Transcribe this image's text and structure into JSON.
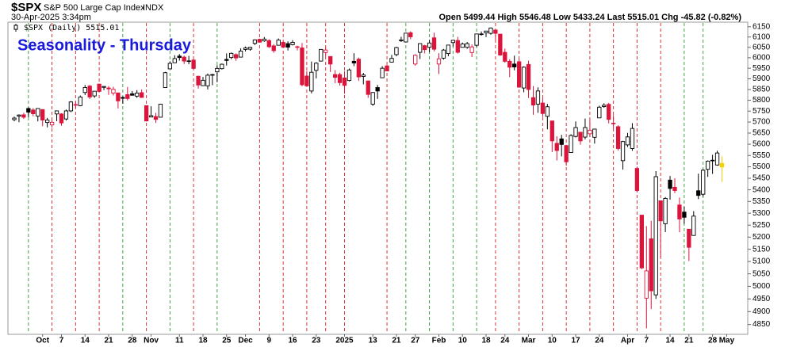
{
  "chart_data": {
    "type": "candlestick",
    "title": "Seasonality - Thursday",
    "header": {
      "symbol": "$SPX",
      "name": "S&P 500 Large Cap Index",
      "exchange": "INDX",
      "timestamp": "30-Apr-2025 3:34pm",
      "quote": "Open 5499.44 High 5546.48 Low 5433.24 Last 5515.01 Chg -45.82 (-0.82%)"
    },
    "legend": "$SPX (Daily) 5515.01",
    "log_scale": true,
    "grid": false,
    "up_color": "#000000",
    "down_color": "#dc143c",
    "last_color": "#f5d000",
    "thursday_up_color": "#2e9a2e",
    "thursday_down_color": "#d81e1e",
    "ylim": [
      4800,
      6200
    ],
    "yticks": [
      4850,
      4900,
      4950,
      5000,
      5050,
      5100,
      5150,
      5200,
      5250,
      5300,
      5350,
      5400,
      5450,
      5500,
      5550,
      5600,
      5650,
      5700,
      5750,
      5800,
      5850,
      5900,
      5950,
      6000,
      6050,
      6100,
      6150
    ],
    "xticks": [
      {
        "value": "2024-10-01",
        "label": "Oct"
      },
      {
        "value": "2024-10-07",
        "label": "7"
      },
      {
        "value": "2024-10-14",
        "label": "14"
      },
      {
        "value": "2024-10-21",
        "label": "21"
      },
      {
        "value": "2024-10-28",
        "label": "28"
      },
      {
        "value": "2024-11-01",
        "label": "Nov"
      },
      {
        "value": "2024-11-11",
        "label": "11"
      },
      {
        "value": "2024-11-18",
        "label": "18"
      },
      {
        "value": "2024-11-25",
        "label": "25"
      },
      {
        "value": "2024-12-02",
        "label": "Dec"
      },
      {
        "value": "2024-12-09",
        "label": "9"
      },
      {
        "value": "2024-12-16",
        "label": "16"
      },
      {
        "value": "2024-12-23",
        "label": "23"
      },
      {
        "value": "2025-01-02",
        "label": "2025"
      },
      {
        "value": "2025-01-13",
        "label": "13"
      },
      {
        "value": "2025-01-21",
        "label": "21"
      },
      {
        "value": "2025-01-27",
        "label": "27"
      },
      {
        "value": "2025-02-03",
        "label": "Feb"
      },
      {
        "value": "2025-02-10",
        "label": "10"
      },
      {
        "value": "2025-02-18",
        "label": "18"
      },
      {
        "value": "2025-02-24",
        "label": "24"
      },
      {
        "value": "2025-03-03",
        "label": "Mar"
      },
      {
        "value": "2025-03-10",
        "label": "10"
      },
      {
        "value": "2025-03-17",
        "label": "17"
      },
      {
        "value": "2025-03-24",
        "label": "24"
      },
      {
        "value": "2025-04-01",
        "label": "Apr"
      },
      {
        "value": "2025-04-07",
        "label": "7"
      },
      {
        "value": "2025-04-14",
        "label": "14"
      },
      {
        "value": "2025-04-21",
        "label": "21"
      },
      {
        "value": "2025-04-28",
        "label": "28"
      },
      {
        "value": "2025-05-01",
        "label": "May"
      }
    ],
    "x": [
      "2024-09-23",
      "2024-09-24",
      "2024-09-25",
      "2024-09-26",
      "2024-09-27",
      "2024-09-30",
      "2024-10-01",
      "2024-10-02",
      "2024-10-03",
      "2024-10-04",
      "2024-10-07",
      "2024-10-08",
      "2024-10-09",
      "2024-10-10",
      "2024-10-11",
      "2024-10-14",
      "2024-10-15",
      "2024-10-16",
      "2024-10-17",
      "2024-10-18",
      "2024-10-21",
      "2024-10-22",
      "2024-10-23",
      "2024-10-24",
      "2024-10-25",
      "2024-10-28",
      "2024-10-29",
      "2024-10-30",
      "2024-10-31",
      "2024-11-01",
      "2024-11-04",
      "2024-11-05",
      "2024-11-06",
      "2024-11-07",
      "2024-11-08",
      "2024-11-11",
      "2024-11-12",
      "2024-11-13",
      "2024-11-14",
      "2024-11-15",
      "2024-11-18",
      "2024-11-19",
      "2024-11-20",
      "2024-11-21",
      "2024-11-22",
      "2024-11-25",
      "2024-11-26",
      "2024-11-27",
      "2024-11-29",
      "2024-12-02",
      "2024-12-03",
      "2024-12-04",
      "2024-12-05",
      "2024-12-06",
      "2024-12-09",
      "2024-12-10",
      "2024-12-11",
      "2024-12-12",
      "2024-12-13",
      "2024-12-16",
      "2024-12-17",
      "2024-12-18",
      "2024-12-19",
      "2024-12-20",
      "2024-12-23",
      "2024-12-24",
      "2024-12-26",
      "2024-12-27",
      "2024-12-30",
      "2024-12-31",
      "2025-01-02",
      "2025-01-03",
      "2025-01-06",
      "2025-01-07",
      "2025-01-08",
      "2025-01-10",
      "2025-01-13",
      "2025-01-14",
      "2025-01-15",
      "2025-01-16",
      "2025-01-17",
      "2025-01-21",
      "2025-01-22",
      "2025-01-23",
      "2025-01-24",
      "2025-01-27",
      "2025-01-28",
      "2025-01-29",
      "2025-01-30",
      "2025-01-31",
      "2025-02-03",
      "2025-02-04",
      "2025-02-05",
      "2025-02-06",
      "2025-02-07",
      "2025-02-10",
      "2025-02-11",
      "2025-02-12",
      "2025-02-13",
      "2025-02-14",
      "2025-02-18",
      "2025-02-19",
      "2025-02-20",
      "2025-02-21",
      "2025-02-24",
      "2025-02-25",
      "2025-02-26",
      "2025-02-27",
      "2025-02-28",
      "2025-03-03",
      "2025-03-04",
      "2025-03-05",
      "2025-03-06",
      "2025-03-07",
      "2025-03-10",
      "2025-03-11",
      "2025-03-12",
      "2025-03-13",
      "2025-03-14",
      "2025-03-17",
      "2025-03-18",
      "2025-03-19",
      "2025-03-20",
      "2025-03-21",
      "2025-03-24",
      "2025-03-25",
      "2025-03-26",
      "2025-03-27",
      "2025-03-28",
      "2025-03-31",
      "2025-04-01",
      "2025-04-02",
      "2025-04-03",
      "2025-04-04",
      "2025-04-07",
      "2025-04-08",
      "2025-04-09",
      "2025-04-10",
      "2025-04-11",
      "2025-04-14",
      "2025-04-15",
      "2025-04-16",
      "2025-04-17",
      "2025-04-21",
      "2025-04-22",
      "2025-04-23",
      "2025-04-24",
      "2025-04-25",
      "2025-04-28",
      "2025-04-29",
      "2025-04-30"
    ],
    "ohlc": [
      [
        5711,
        5725,
        5704,
        5718
      ],
      [
        5727,
        5735,
        5699,
        5732
      ],
      [
        5733,
        5742,
        5714,
        5722
      ],
      [
        5762,
        5767,
        5722,
        5745
      ],
      [
        5755,
        5764,
        5727,
        5738
      ],
      [
        5727,
        5763,
        5703,
        5762
      ],
      [
        5757,
        5757,
        5681,
        5709
      ],
      [
        5698,
        5719,
        5676,
        5709
      ],
      [
        5687,
        5709,
        5675,
        5699
      ],
      [
        5737,
        5753,
        5704,
        5751
      ],
      [
        5737,
        5740,
        5683,
        5696
      ],
      [
        5714,
        5757,
        5707,
        5751
      ],
      [
        5751,
        5796,
        5745,
        5792
      ],
      [
        5778,
        5795,
        5764,
        5780
      ],
      [
        5775,
        5822,
        5772,
        5815
      ],
      [
        5836,
        5871,
        5824,
        5859
      ],
      [
        5866,
        5871,
        5806,
        5815
      ],
      [
        5820,
        5843,
        5811,
        5842
      ],
      [
        5875,
        5878,
        5840,
        5841
      ],
      [
        5860,
        5866,
        5847,
        5864
      ],
      [
        5857,
        5866,
        5825,
        5853
      ],
      [
        5833,
        5863,
        5822,
        5851
      ],
      [
        5834,
        5835,
        5762,
        5797
      ],
      [
        5813,
        5818,
        5784,
        5809
      ],
      [
        5826,
        5862,
        5799,
        5808
      ],
      [
        5830,
        5843,
        5823,
        5823
      ],
      [
        5819,
        5847,
        5811,
        5833
      ],
      [
        5835,
        5850,
        5811,
        5813
      ],
      [
        5775,
        5776,
        5703,
        5705
      ],
      [
        5723,
        5772,
        5723,
        5729
      ],
      [
        5725,
        5742,
        5696,
        5712
      ],
      [
        5722,
        5784,
        5722,
        5782
      ],
      [
        5859,
        5933,
        5859,
        5929
      ],
      [
        5947,
        5983,
        5947,
        5973
      ],
      [
        5976,
        6012,
        5976,
        5996
      ],
      [
        6008,
        6018,
        5986,
        6001
      ],
      [
        6003,
        6010,
        5970,
        5984
      ],
      [
        5985,
        6009,
        5969,
        5985
      ],
      [
        5989,
        5993,
        5944,
        5949
      ],
      [
        5912,
        5915,
        5854,
        5871
      ],
      [
        5868,
        5909,
        5866,
        5893
      ],
      [
        5867,
        5925,
        5850,
        5917
      ],
      [
        5920,
        5923,
        5870,
        5917
      ],
      [
        5933,
        5964,
        5884,
        5949
      ],
      [
        5948,
        5972,
        5944,
        5969
      ],
      [
        5992,
        6021,
        5963,
        5987
      ],
      [
        6001,
        6025,
        5993,
        6021
      ],
      [
        6015,
        6021,
        5985,
        5999
      ],
      [
        6003,
        6045,
        6003,
        6032
      ],
      [
        6040,
        6054,
        6030,
        6047
      ],
      [
        6041,
        6053,
        6034,
        6050
      ],
      [
        6069,
        6089,
        6061,
        6086
      ],
      [
        6089,
        6092,
        6074,
        6075
      ],
      [
        6081,
        6100,
        6077,
        6090
      ],
      [
        6083,
        6089,
        6047,
        6053
      ],
      [
        6057,
        6066,
        6024,
        6034
      ],
      [
        6060,
        6093,
        6060,
        6085
      ],
      [
        6074,
        6079,
        6051,
        6051
      ],
      [
        6068,
        6079,
        6035,
        6051
      ],
      [
        6063,
        6085,
        6059,
        6074
      ],
      [
        6053,
        6058,
        6035,
        6050
      ],
      [
        6047,
        6071,
        5865,
        5872
      ],
      [
        5913,
        5936,
        5866,
        5867
      ],
      [
        5843,
        5982,
        5832,
        5931
      ],
      [
        5940,
        5979,
        5902,
        5974
      ],
      [
        5984,
        6040,
        5982,
        6040
      ],
      [
        6025,
        6049,
        6007,
        6037
      ],
      [
        6006,
        6007,
        5932,
        5970
      ],
      [
        5920,
        5941,
        5880,
        5907
      ],
      [
        5920,
        5929,
        5868,
        5882
      ],
      [
        5904,
        5935,
        5830,
        5869
      ],
      [
        5892,
        5949,
        5888,
        5942
      ],
      [
        5983,
        6022,
        5960,
        5975
      ],
      [
        5993,
        6001,
        5890,
        5909
      ],
      [
        5911,
        5928,
        5874,
        5918
      ],
      [
        5890,
        5891,
        5811,
        5827
      ],
      [
        5782,
        5838,
        5774,
        5836
      ],
      [
        5859,
        5871,
        5806,
        5843
      ],
      [
        5905,
        5960,
        5905,
        5950
      ],
      [
        5961,
        5965,
        5935,
        5937
      ],
      [
        5979,
        6014,
        5978,
        5997
      ],
      [
        6015,
        6053,
        6007,
        6049
      ],
      [
        6082,
        6101,
        6076,
        6086
      ],
      [
        6076,
        6119,
        6074,
        6119
      ],
      [
        6121,
        6128,
        6089,
        6101
      ],
      [
        5970,
        6017,
        5962,
        6012
      ],
      [
        6026,
        6070,
        5994,
        6068
      ],
      [
        6058,
        6062,
        6021,
        6039
      ],
      [
        6050,
        6086,
        6027,
        6071
      ],
      [
        6096,
        6121,
        6031,
        6041
      ],
      [
        5970,
        6022,
        5923,
        5995
      ],
      [
        5998,
        6042,
        5991,
        6037
      ],
      [
        6020,
        6062,
        6007,
        6061
      ],
      [
        6073,
        6084,
        6054,
        6084
      ],
      [
        6083,
        6101,
        6020,
        6026
      ],
      [
        6050,
        6073,
        6049,
        6066
      ],
      [
        6050,
        6076,
        6043,
        6068
      ],
      [
        6025,
        6064,
        6003,
        6052
      ],
      [
        6060,
        6116,
        6052,
        6115
      ],
      [
        6115,
        6127,
        6107,
        6115
      ],
      [
        6121,
        6129,
        6100,
        6129
      ],
      [
        6118,
        6147,
        6111,
        6144
      ],
      [
        6134,
        6134,
        6085,
        6118
      ],
      [
        6114,
        6114,
        6009,
        6013
      ],
      [
        6026,
        6044,
        5977,
        5983
      ],
      [
        5983,
        5993,
        5908,
        5955
      ],
      [
        5970,
        6010,
        5940,
        5956
      ],
      [
        5981,
        5994,
        5858,
        5861
      ],
      [
        5857,
        5959,
        5837,
        5955
      ],
      [
        5968,
        5986,
        5810,
        5850
      ],
      [
        5812,
        5866,
        5733,
        5778
      ],
      [
        5782,
        5860,
        5742,
        5843
      ],
      [
        5787,
        5812,
        5723,
        5739
      ],
      [
        5726,
        5783,
        5667,
        5770
      ],
      [
        5705,
        5706,
        5565,
        5615
      ],
      [
        5604,
        5636,
        5528,
        5572
      ],
      [
        5624,
        5642,
        5546,
        5599
      ],
      [
        5594,
        5597,
        5505,
        5522
      ],
      [
        5563,
        5645,
        5563,
        5639
      ],
      [
        5635,
        5703,
        5630,
        5675
      ],
      [
        5654,
        5654,
        5598,
        5615
      ],
      [
        5632,
        5716,
        5622,
        5675
      ],
      [
        5647,
        5711,
        5632,
        5663
      ],
      [
        5631,
        5670,
        5603,
        5668
      ],
      [
        5719,
        5775,
        5719,
        5768
      ],
      [
        5771,
        5786,
        5765,
        5777
      ],
      [
        5781,
        5788,
        5694,
        5712
      ],
      [
        5695,
        5732,
        5670,
        5693
      ],
      [
        5679,
        5685,
        5572,
        5581
      ],
      [
        5527,
        5615,
        5488,
        5612
      ],
      [
        5597,
        5651,
        5588,
        5633
      ],
      [
        5581,
        5695,
        5571,
        5671
      ],
      [
        5493,
        5501,
        5390,
        5397
      ],
      [
        5292,
        5293,
        5069,
        5074
      ],
      [
        4953,
        5246,
        4835,
        5062
      ],
      [
        5193,
        5268,
        4910,
        4982
      ],
      [
        4966,
        5481,
        4950,
        5457
      ],
      [
        5353,
        5353,
        5116,
        5268
      ],
      [
        5256,
        5369,
        5221,
        5363
      ],
      [
        5442,
        5460,
        5358,
        5406
      ],
      [
        5411,
        5450,
        5386,
        5397
      ],
      [
        5335,
        5367,
        5220,
        5276
      ],
      [
        5305,
        5328,
        5256,
        5283
      ],
      [
        5233,
        5233,
        5102,
        5158
      ],
      [
        5207,
        5309,
        5207,
        5288
      ],
      [
        5396,
        5470,
        5360,
        5376
      ],
      [
        5381,
        5490,
        5371,
        5485
      ],
      [
        5489,
        5528,
        5456,
        5525
      ],
      [
        5529,
        5553,
        5469,
        5529
      ],
      [
        5508,
        5571,
        5505,
        5561
      ],
      [
        5499.44,
        5546.48,
        5433.24,
        5515.01
      ]
    ]
  }
}
